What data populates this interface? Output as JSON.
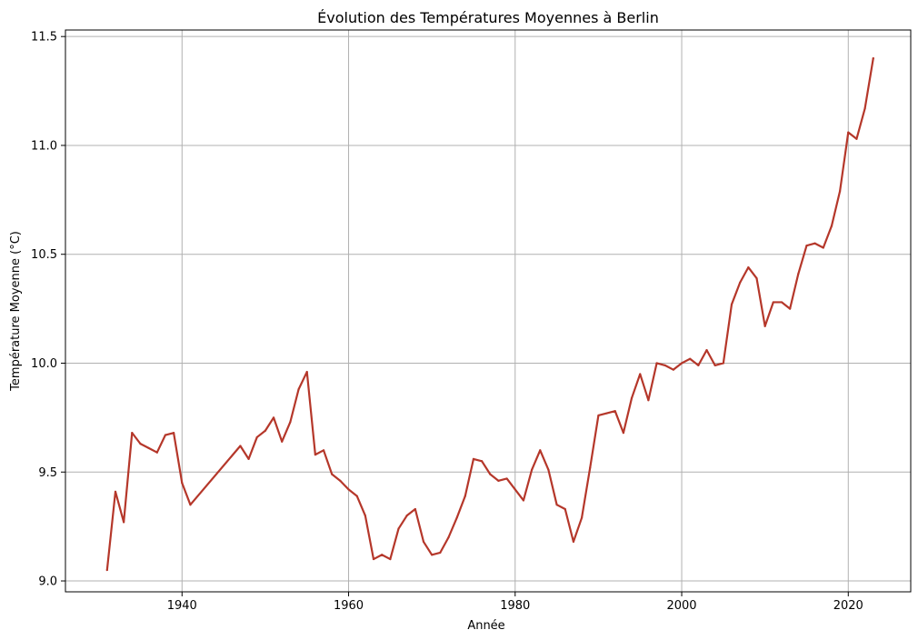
{
  "chart_data": {
    "type": "line",
    "title": "Évolution des Températures Moyennes à Berlin",
    "xlabel": "Année",
    "ylabel": "Température Moyenne (°C)",
    "xlim": [
      1926,
      2027.5
    ],
    "ylim": [
      8.95,
      11.53
    ],
    "xticks": [
      1940,
      1960,
      1980,
      2000,
      2020
    ],
    "xtick_labels": [
      "1940",
      "1960",
      "1980",
      "2000",
      "2020"
    ],
    "yticks": [
      9.0,
      9.5,
      10.0,
      10.5,
      11.0,
      11.5
    ],
    "ytick_labels": [
      "9.0",
      "9.5",
      "10.0",
      "10.5",
      "11.0",
      "11.5"
    ],
    "grid": true,
    "series": [
      {
        "name": "Température Moyenne",
        "color": "#b5372a",
        "x": [
          1931,
          1932,
          1933,
          1934,
          1935,
          1936,
          1937,
          1938,
          1939,
          1940,
          1941,
          1947,
          1948,
          1949,
          1950,
          1951,
          1952,
          1953,
          1954,
          1955,
          1956,
          1957,
          1958,
          1959,
          1960,
          1961,
          1962,
          1963,
          1964,
          1965,
          1966,
          1967,
          1968,
          1969,
          1970,
          1971,
          1972,
          1973,
          1974,
          1975,
          1976,
          1977,
          1978,
          1979,
          1980,
          1981,
          1982,
          1983,
          1984,
          1985,
          1986,
          1987,
          1988,
          1989,
          1990,
          1991,
          1992,
          1993,
          1994,
          1995,
          1996,
          1997,
          1998,
          1999,
          2000,
          2001,
          2002,
          2003,
          2004,
          2005,
          2006,
          2007,
          2008,
          2009,
          2010,
          2011,
          2012,
          2013,
          2014,
          2015,
          2016,
          2017,
          2018,
          2019,
          2020,
          2021,
          2022,
          2023
        ],
        "values": [
          9.05,
          9.41,
          9.27,
          9.68,
          9.63,
          9.61,
          9.59,
          9.67,
          9.68,
          9.45,
          9.35,
          9.62,
          9.56,
          9.66,
          9.69,
          9.75,
          9.64,
          9.73,
          9.88,
          9.96,
          9.58,
          9.6,
          9.49,
          9.46,
          9.42,
          9.39,
          9.3,
          9.1,
          9.12,
          9.1,
          9.24,
          9.3,
          9.33,
          9.18,
          9.12,
          9.13,
          9.2,
          9.29,
          9.39,
          9.56,
          9.55,
          9.49,
          9.46,
          9.47,
          9.42,
          9.37,
          9.51,
          9.6,
          9.51,
          9.35,
          9.33,
          9.18,
          9.29,
          9.52,
          9.76,
          9.77,
          9.78,
          9.68,
          9.84,
          9.95,
          9.83,
          10.0,
          9.99,
          9.97,
          10.0,
          10.02,
          9.99,
          10.06,
          9.99,
          10.0,
          10.27,
          10.37,
          10.44,
          10.39,
          10.17,
          10.28,
          10.28,
          10.25,
          10.41,
          10.54,
          10.55,
          10.53,
          10.63,
          10.79,
          11.06,
          11.03,
          11.17,
          11.4
        ]
      }
    ]
  }
}
